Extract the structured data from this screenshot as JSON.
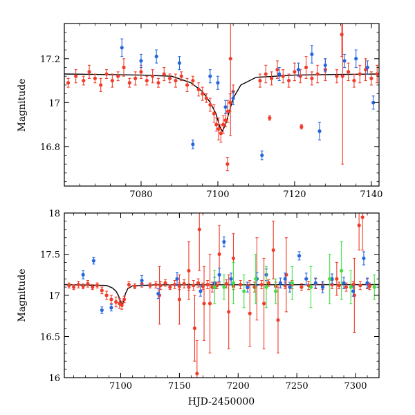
{
  "colors": {
    "red": "#f03c2a",
    "blue": "#2466e0",
    "green": "#3fe03f",
    "model": "#000000",
    "axis": "#000000"
  },
  "chart_data": [
    {
      "type": "scatter",
      "title": "",
      "xlabel": "",
      "ylabel": "Magnitude",
      "xlim": [
        7060,
        7142
      ],
      "ylim": [
        17.36,
        16.62
      ],
      "y_inverted": true,
      "xticks": [
        7080,
        7100,
        7120,
        7140
      ],
      "xtick_labels": [
        "7080",
        "7100",
        "7120",
        "7140"
      ],
      "yticks": [
        16.8,
        17,
        17.2
      ],
      "ytick_labels": [
        "16.8",
        "17",
        "17.2"
      ],
      "model_curve": {
        "name": "microlensing model",
        "baseline": 17.13,
        "points": [
          [
            7060,
            17.13
          ],
          [
            7070,
            17.128
          ],
          [
            7080,
            17.125
          ],
          [
            7088,
            17.12
          ],
          [
            7093,
            17.09
          ],
          [
            7096,
            17.05
          ],
          [
            7098,
            17.0
          ],
          [
            7099.5,
            16.95
          ],
          [
            7100.5,
            16.89
          ],
          [
            7101.2,
            16.87
          ],
          [
            7102,
            16.9
          ],
          [
            7103,
            16.96
          ],
          [
            7104,
            17.02
          ],
          [
            7106,
            17.08
          ],
          [
            7110,
            17.115
          ],
          [
            7120,
            17.125
          ],
          [
            7130,
            17.128
          ],
          [
            7142,
            17.13
          ]
        ]
      },
      "series": [
        {
          "name": "red",
          "color": "red",
          "x": [
            7061,
            7063,
            7065,
            7066.5,
            7068,
            7069.5,
            7071,
            7072.5,
            7074,
            7075.5,
            7077,
            7078.5,
            7080,
            7081.5,
            7083,
            7084.5,
            7086,
            7087.5,
            7089,
            7090.5,
            7092,
            7093.5,
            7095,
            7096,
            7097,
            7098,
            7099,
            7099.6,
            7100.2,
            7100.8,
            7101.4,
            7102,
            7102.6,
            7103.2,
            7104,
            7111,
            7112.5,
            7114,
            7115.5,
            7117,
            7118.5,
            7120,
            7121.5,
            7123,
            7124.5,
            7126,
            7128,
            7131,
            7134,
            7135.5,
            7137,
            7138.5,
            7140,
            7141.5,
            7102.5,
            7103.3,
            7113.5,
            7121.8,
            7132.5,
            7132.3
          ],
          "y": [
            17.09,
            17.12,
            17.1,
            17.14,
            17.11,
            17.08,
            17.13,
            17.1,
            17.12,
            17.16,
            17.09,
            17.11,
            17.14,
            17.1,
            17.12,
            17.09,
            17.13,
            17.11,
            17.1,
            17.12,
            17.08,
            17.1,
            17.06,
            17.04,
            17.02,
            16.99,
            16.95,
            16.9,
            16.88,
            16.86,
            16.9,
            16.92,
            16.96,
            17.0,
            17.05,
            17.1,
            17.13,
            17.11,
            17.15,
            17.12,
            17.1,
            17.14,
            17.12,
            17.16,
            17.11,
            17.13,
            17.15,
            17.12,
            17.14,
            17.1,
            17.13,
            17.15,
            17.11,
            17.13,
            16.72,
            17.2,
            16.93,
            16.89,
            17.12,
            17.31
          ],
          "err": [
            0.02,
            0.03,
            0.02,
            0.03,
            0.02,
            0.03,
            0.02,
            0.03,
            0.02,
            0.04,
            0.02,
            0.03,
            0.03,
            0.02,
            0.03,
            0.02,
            0.03,
            0.02,
            0.03,
            0.02,
            0.03,
            0.02,
            0.03,
            0.03,
            0.02,
            0.03,
            0.04,
            0.03,
            0.05,
            0.04,
            0.04,
            0.03,
            0.05,
            0.04,
            0.03,
            0.03,
            0.04,
            0.03,
            0.04,
            0.03,
            0.03,
            0.04,
            0.03,
            0.05,
            0.03,
            0.04,
            0.05,
            0.03,
            0.04,
            0.03,
            0.04,
            0.05,
            0.03,
            0.04,
            0.03,
            0.35,
            0.01,
            0.01,
            0.4,
            0.1
          ]
        },
        {
          "name": "blue",
          "color": "blue",
          "x": [
            7075,
            7080,
            7084,
            7090,
            7093.5,
            7098,
            7100,
            7102,
            7104,
            7111.5,
            7116,
            7121,
            7124.5,
            7126.5,
            7128,
            7133,
            7136,
            7139,
            7140.5
          ],
          "y": [
            17.25,
            17.19,
            17.21,
            17.18,
            16.81,
            17.12,
            17.09,
            16.98,
            17.02,
            16.76,
            17.13,
            17.15,
            17.22,
            16.87,
            17.17,
            17.19,
            17.2,
            17.16,
            17.0
          ],
          "err": [
            0.04,
            0.03,
            0.03,
            0.03,
            0.02,
            0.03,
            0.03,
            0.03,
            0.03,
            0.02,
            0.03,
            0.03,
            0.04,
            0.04,
            0.03,
            0.03,
            0.04,
            0.03,
            0.03
          ]
        }
      ]
    },
    {
      "type": "scatter",
      "title": "",
      "xlabel": "HJD-2450000",
      "ylabel": "Magnitude",
      "xlim": [
        7052,
        7320
      ],
      "ylim": [
        18,
        16
      ],
      "y_inverted": true,
      "xticks": [
        7100,
        7150,
        7200,
        7250,
        7300
      ],
      "xtick_labels": [
        "7100",
        "7150",
        "7200",
        "7250",
        "7300"
      ],
      "yticks": [
        16,
        16.5,
        17,
        17.5,
        18
      ],
      "ytick_labels": [
        "16",
        "16.5",
        "17",
        "17.5",
        "18"
      ],
      "model_curve": {
        "name": "microlensing model",
        "baseline": 17.13,
        "points": [
          [
            7052,
            17.13
          ],
          [
            7088,
            17.12
          ],
          [
            7093,
            17.09
          ],
          [
            7096,
            17.05
          ],
          [
            7098,
            17.0
          ],
          [
            7100,
            16.92
          ],
          [
            7101.2,
            16.87
          ],
          [
            7102.5,
            16.93
          ],
          [
            7104,
            17.02
          ],
          [
            7106,
            17.08
          ],
          [
            7110,
            17.115
          ],
          [
            7130,
            17.128
          ],
          [
            7320,
            17.13
          ]
        ]
      },
      "series": [
        {
          "name": "red",
          "color": "red",
          "x": [
            7056,
            7060,
            7064,
            7068,
            7072,
            7076,
            7080,
            7084,
            7088,
            7092,
            7096,
            7099,
            7101,
            7103,
            7107,
            7112,
            7118,
            7125,
            7130,
            7134,
            7138,
            7142,
            7146,
            7150,
            7154,
            7158,
            7162,
            7166,
            7170,
            7174,
            7178,
            7182,
            7190,
            7196,
            7202,
            7208,
            7214,
            7220,
            7226,
            7232,
            7240,
            7246,
            7254,
            7260,
            7266,
            7272,
            7280,
            7286,
            7292,
            7298,
            7304,
            7310,
            7312,
            7133,
            7150,
            7158,
            7163,
            7165,
            7167,
            7171,
            7176,
            7184,
            7192,
            7196,
            7210,
            7216,
            7222,
            7230,
            7234,
            7241,
            7284,
            7299,
            7303,
            7306
          ],
          "y": [
            17.12,
            17.1,
            17.13,
            17.11,
            17.14,
            17.1,
            17.12,
            17.06,
            17.0,
            16.95,
            16.92,
            16.9,
            16.88,
            16.95,
            17.13,
            17.11,
            17.14,
            17.12,
            17.13,
            17.12,
            17.15,
            17.1,
            17.13,
            17.11,
            17.14,
            17.1,
            17.12,
            17.15,
            17.11,
            17.13,
            17.1,
            17.12,
            17.14,
            17.11,
            17.13,
            17.12,
            17.1,
            17.13,
            17.15,
            17.11,
            17.12,
            17.13,
            17.1,
            17.12,
            17.14,
            17.11,
            17.13,
            17.12,
            17.1,
            17.13,
            17.12,
            17.14,
            17.11,
            17.0,
            16.95,
            17.3,
            16.6,
            16.05,
            17.8,
            16.9,
            16.9,
            17.5,
            16.8,
            17.45,
            16.78,
            17.2,
            16.9,
            17.55,
            16.7,
            17.25,
            17.2,
            17.0,
            17.85,
            17.95
          ],
          "err": [
            0.03,
            0.03,
            0.04,
            0.03,
            0.04,
            0.03,
            0.03,
            0.04,
            0.05,
            0.05,
            0.06,
            0.06,
            0.05,
            0.04,
            0.04,
            0.03,
            0.04,
            0.03,
            0.04,
            0.05,
            0.04,
            0.03,
            0.05,
            0.04,
            0.05,
            0.04,
            0.06,
            0.05,
            0.04,
            0.05,
            0.06,
            0.04,
            0.05,
            0.04,
            0.05,
            0.04,
            0.06,
            0.05,
            0.04,
            0.05,
            0.04,
            0.05,
            0.04,
            0.05,
            0.06,
            0.04,
            0.05,
            0.04,
            0.05,
            0.04,
            0.05,
            0.06,
            0.04,
            0.35,
            0.3,
            0.35,
            0.4,
            0.4,
            0.5,
            0.45,
            0.6,
            0.35,
            0.45,
            0.3,
            0.4,
            0.5,
            0.55,
            0.35,
            0.4,
            0.45,
            0.2,
            0.45,
            0.3,
            0.4
          ]
        },
        {
          "name": "blue",
          "color": "blue",
          "x": [
            7068,
            7077,
            7084,
            7092,
            7118,
            7132,
            7148,
            7168,
            7180,
            7184,
            7188,
            7194,
            7208,
            7216,
            7224,
            7236,
            7240,
            7244,
            7252,
            7258,
            7266,
            7272,
            7280,
            7290,
            7298,
            7307,
            7310
          ],
          "y": [
            17.25,
            17.42,
            16.82,
            16.85,
            17.18,
            17.02,
            17.2,
            17.05,
            17.15,
            17.25,
            17.65,
            17.2,
            17.1,
            17.2,
            17.25,
            17.15,
            17.2,
            17.1,
            17.48,
            17.2,
            17.15,
            17.1,
            17.2,
            17.15,
            17.05,
            17.45,
            17.15
          ],
          "err": [
            0.05,
            0.04,
            0.04,
            0.04,
            0.06,
            0.06,
            0.08,
            0.06,
            0.07,
            0.08,
            0.06,
            0.07,
            0.06,
            0.08,
            0.07,
            0.06,
            0.07,
            0.06,
            0.05,
            0.07,
            0.06,
            0.07,
            0.06,
            0.07,
            0.06,
            0.08,
            0.06
          ]
        },
        {
          "name": "green",
          "color": "green",
          "x": [
            7180,
            7188,
            7196,
            7205,
            7215,
            7224,
            7232,
            7246,
            7262,
            7278,
            7288,
            7296,
            7316
          ],
          "y": [
            17.1,
            17.1,
            17.15,
            17.05,
            17.2,
            17.1,
            17.05,
            17.15,
            17.1,
            17.2,
            17.3,
            17.1,
            17.1
          ],
          "err": [
            0.2,
            0.15,
            0.25,
            0.2,
            0.3,
            0.25,
            0.15,
            0.2,
            0.25,
            0.3,
            0.35,
            0.2,
            0.15
          ]
        }
      ]
    }
  ]
}
